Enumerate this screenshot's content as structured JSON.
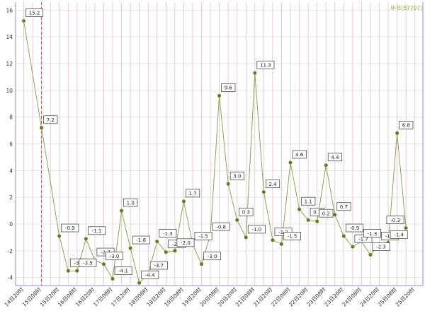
{
  "chart_data": {
    "type": "line",
    "legend_label": "毕节(57707)",
    "legend_position": "top-right",
    "colors": {
      "line": "#8aa84e",
      "marker": "#5f7f1f",
      "grid_vertical": "#f2b8c6",
      "grid_horizontal": "#e6e6e6",
      "current_marker": "#e0405a",
      "axis": "#8c8ccf",
      "legend_text": "#9aaa3a"
    },
    "y_axis": {
      "min": -4.6,
      "max": 16.6,
      "ticks": [
        -4,
        -2,
        0,
        2,
        4,
        6,
        8,
        10,
        12,
        14,
        16
      ]
    },
    "grid": true,
    "current_time_index": 2,
    "x_ticks": [
      {
        "index": 0,
        "label": "14日20时"
      },
      {
        "index": 2,
        "label": "15日08时"
      },
      {
        "index": 4,
        "label": "15日20时"
      },
      {
        "index": 6,
        "label": "16日08时"
      },
      {
        "index": 8,
        "label": "16日20时"
      },
      {
        "index": 10,
        "label": "17日08时"
      },
      {
        "index": 12,
        "label": "17日20时"
      },
      {
        "index": 14,
        "label": "18日08时"
      },
      {
        "index": 16,
        "label": "18日20时"
      },
      {
        "index": 18,
        "label": "19日08时"
      },
      {
        "index": 20,
        "label": "19日20时"
      },
      {
        "index": 22,
        "label": "20日08时"
      },
      {
        "index": 24,
        "label": "20日20时"
      },
      {
        "index": 26,
        "label": "21日08时"
      },
      {
        "index": 28,
        "label": "21日20时"
      },
      {
        "index": 30,
        "label": "22日08时"
      },
      {
        "index": 32,
        "label": "22日20时"
      },
      {
        "index": 34,
        "label": "23日08时"
      },
      {
        "index": 36,
        "label": "23日20时"
      },
      {
        "index": 38,
        "label": "24日08时"
      },
      {
        "index": 40,
        "label": "24日20时"
      },
      {
        "index": 42,
        "label": "25日08时"
      },
      {
        "index": 44,
        "label": "25日20时"
      }
    ],
    "series": [
      {
        "values": [
          15.2,
          7.2,
          -0.9,
          -3.5,
          -3.5,
          -1.1,
          -2.7,
          -3.0,
          -4.1,
          1.0,
          -1.8,
          -4.4,
          -3.7,
          -1.3,
          -2.1,
          -2.0,
          1.7,
          -1.5,
          -3.0,
          -0.8,
          9.6,
          3.0,
          0.3,
          -1.0,
          11.3,
          2.4,
          -1.2,
          -1.5,
          4.6,
          1.1,
          0.3,
          0.2,
          4.4,
          0.7,
          -0.9,
          -1.7,
          -1.3,
          -2.3,
          -1.5,
          -1.4,
          6.8,
          -0.3
        ],
        "labels": [
          "15.2",
          "7.2",
          "-0.9",
          "-3.5",
          "-3.5",
          "-1.1",
          "-2.7",
          "-3.0",
          "-4.1",
          "1.0",
          "-1.8",
          "-4.4",
          "-3.7",
          "-1.3",
          "-2.1",
          "-2.0",
          "1.7",
          "-1.5",
          "-3.0",
          "-0.8",
          "9.6",
          "3.0",
          "0.3",
          "-1.0",
          "11.3",
          "2.4",
          "-1.2",
          "-1.5",
          "4.6",
          "1.1",
          "0.3",
          "0.2",
          "4.4",
          "0.7",
          "-0.9",
          "-1.7",
          "-1.3",
          "-2.3",
          "-1.5",
          "-1.4",
          "6.8",
          "-0.3"
        ],
        "x_index": [
          0,
          2,
          4,
          5,
          6,
          7,
          8,
          9,
          10,
          11,
          12,
          13,
          14,
          15,
          16,
          17,
          18,
          19,
          20,
          21,
          22,
          23,
          24,
          25,
          26,
          27,
          28,
          29,
          30,
          31,
          32,
          33,
          34,
          35,
          36,
          37,
          38,
          39,
          40,
          41,
          42,
          43
        ]
      }
    ]
  }
}
